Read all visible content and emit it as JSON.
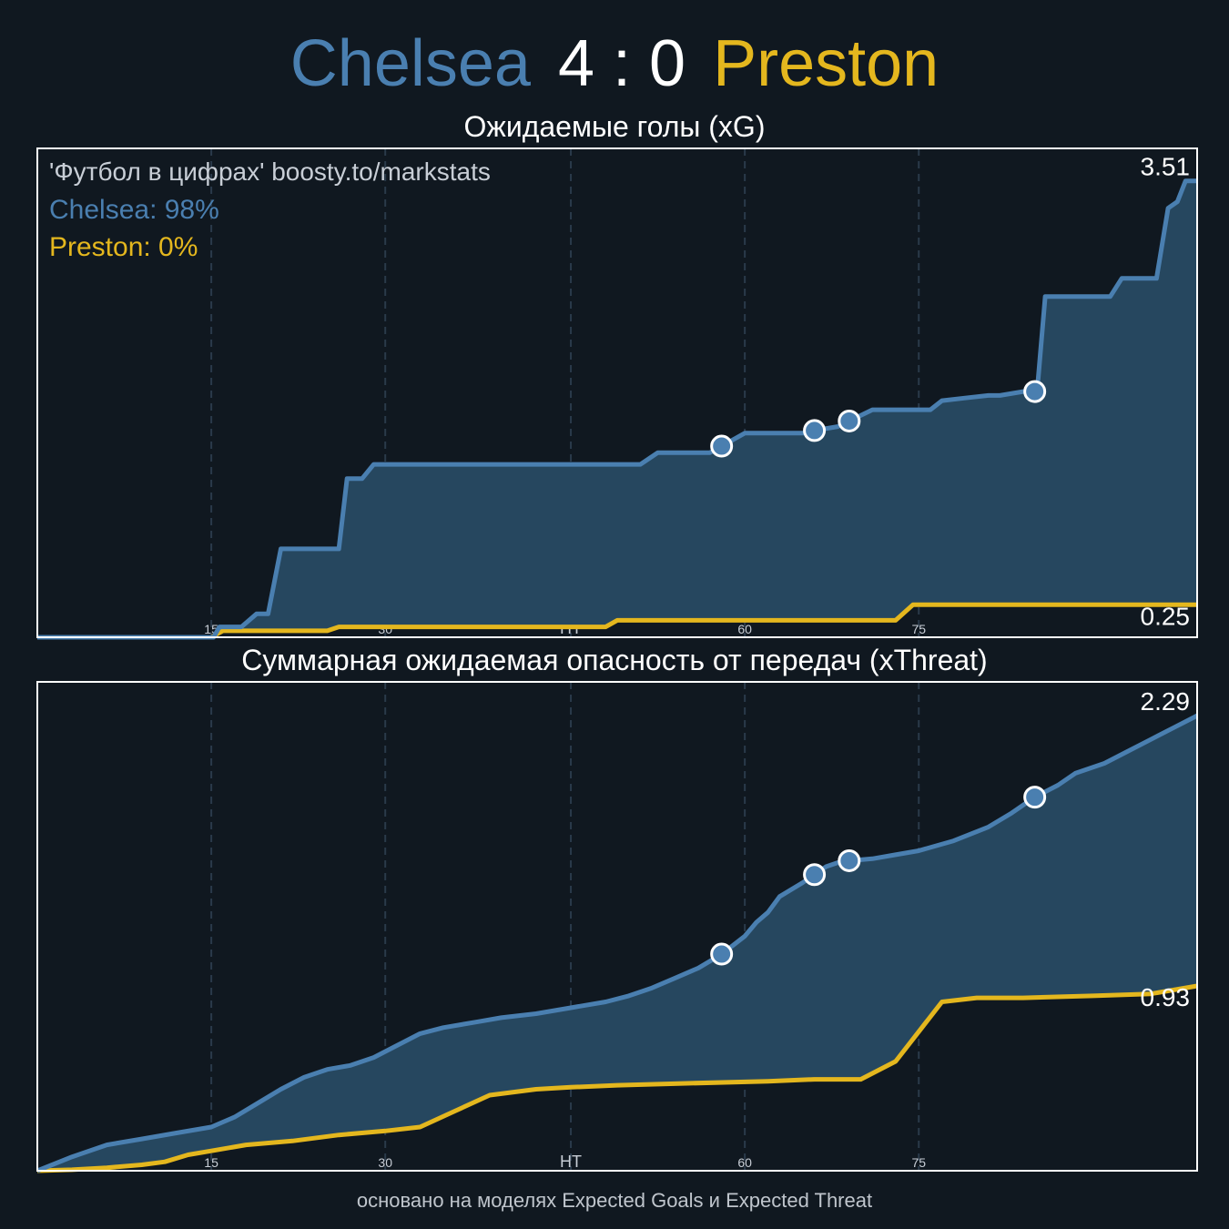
{
  "header": {
    "home_team": "Chelsea",
    "score": "4 : 0",
    "away_team": "Preston"
  },
  "footer": "основано на моделях Expected Goals и Expected Threat",
  "colors": {
    "background": "#101820",
    "home": "#4a7fb0",
    "away": "#e4b71e",
    "fill": "#26475f",
    "grid": "#2a3a4a",
    "frame": "#ffffff"
  },
  "chart_data": [
    {
      "type": "line",
      "title": "Ожидаемые голы (xG)",
      "xlim": [
        0,
        100
      ],
      "ylim": [
        0,
        3.76
      ],
      "x_ticks": [
        {
          "x": 15,
          "label": "15"
        },
        {
          "x": 30,
          "label": "30"
        },
        {
          "x": 46,
          "label": "HT"
        },
        {
          "x": 61,
          "label": "60"
        },
        {
          "x": 76,
          "label": "75"
        }
      ],
      "annotation": {
        "source": "'Футбол в цифрах' boosty.to/markstats",
        "home_prob": "Chelsea: 98%",
        "away_prob": "Preston: 0%"
      },
      "final_labels": {
        "home": "3.51",
        "away": "0.25"
      },
      "series": [
        {
          "name": "Chelsea",
          "team": "home",
          "points": [
            [
              0,
              0
            ],
            [
              15.2,
              0
            ],
            [
              15.7,
              0.08
            ],
            [
              17.6,
              0.08
            ],
            [
              18.9,
              0.18
            ],
            [
              19.9,
              0.18
            ],
            [
              21,
              0.68
            ],
            [
              26,
              0.68
            ],
            [
              26.7,
              1.22
            ],
            [
              28,
              1.22
            ],
            [
              29,
              1.33
            ],
            [
              52,
              1.33
            ],
            [
              53.5,
              1.42
            ],
            [
              57,
              1.42
            ],
            [
              58,
              1.42
            ],
            [
              61,
              1.57
            ],
            [
              66,
              1.57
            ],
            [
              67,
              1.59
            ],
            [
              69,
              1.62
            ],
            [
              72,
              1.75
            ],
            [
              77,
              1.75
            ],
            [
              78,
              1.82
            ],
            [
              80,
              1.84
            ],
            [
              82,
              1.86
            ],
            [
              83,
              1.86
            ],
            [
              85,
              1.89
            ],
            [
              86,
              1.89
            ],
            [
              86.2,
              1.89
            ],
            [
              86.9,
              2.62
            ],
            [
              92.5,
              2.62
            ],
            [
              93.5,
              2.76
            ],
            [
              96.5,
              2.76
            ],
            [
              97.5,
              3.3
            ],
            [
              98.3,
              3.35
            ],
            [
              99,
              3.51
            ],
            [
              100,
              3.51
            ]
          ],
          "goals": [
            59,
            67,
            70,
            86
          ]
        },
        {
          "name": "Preston",
          "team": "away",
          "points": [
            [
              0,
              0
            ],
            [
              15,
              0
            ],
            [
              16,
              0.05
            ],
            [
              25,
              0.05
            ],
            [
              26,
              0.08
            ],
            [
              49,
              0.08
            ],
            [
              50,
              0.13
            ],
            [
              74,
              0.13
            ],
            [
              75.5,
              0.25
            ],
            [
              100,
              0.25
            ]
          ]
        }
      ]
    },
    {
      "type": "line",
      "title": "Суммарная ожидаемая опасность от передач (xThreat)",
      "xlim": [
        0,
        100
      ],
      "ylim": [
        0,
        2.46
      ],
      "x_ticks": [
        {
          "x": 15,
          "label": "15"
        },
        {
          "x": 30,
          "label": "30"
        },
        {
          "x": 46,
          "label": "HT"
        },
        {
          "x": 61,
          "label": "60"
        },
        {
          "x": 76,
          "label": "75"
        }
      ],
      "final_labels": {
        "home": "2.29",
        "away": "0.93"
      },
      "series": [
        {
          "name": "Chelsea",
          "team": "home",
          "points": [
            [
              0,
              0
            ],
            [
              3,
              0.07
            ],
            [
              6,
              0.13
            ],
            [
              9,
              0.16
            ],
            [
              12,
              0.19
            ],
            [
              15,
              0.22
            ],
            [
              17,
              0.27
            ],
            [
              19,
              0.34
            ],
            [
              21,
              0.41
            ],
            [
              23,
              0.47
            ],
            [
              25,
              0.51
            ],
            [
              27,
              0.53
            ],
            [
              29,
              0.57
            ],
            [
              31,
              0.63
            ],
            [
              33,
              0.69
            ],
            [
              35,
              0.72
            ],
            [
              38,
              0.75
            ],
            [
              40,
              0.77
            ],
            [
              43,
              0.79
            ],
            [
              46,
              0.82
            ],
            [
              49,
              0.85
            ],
            [
              51,
              0.88
            ],
            [
              53,
              0.92
            ],
            [
              55,
              0.97
            ],
            [
              57,
              1.02
            ],
            [
              59,
              1.09
            ],
            [
              61,
              1.18
            ],
            [
              62,
              1.25
            ],
            [
              63,
              1.3
            ],
            [
              64,
              1.38
            ],
            [
              66,
              1.45
            ],
            [
              67,
              1.49
            ],
            [
              68,
              1.53
            ],
            [
              69,
              1.55
            ],
            [
              70,
              1.56
            ],
            [
              72,
              1.57
            ],
            [
              74,
              1.59
            ],
            [
              76,
              1.61
            ],
            [
              79,
              1.66
            ],
            [
              82,
              1.73
            ],
            [
              84,
              1.8
            ],
            [
              86,
              1.88
            ],
            [
              88,
              1.94
            ],
            [
              89.5,
              2.0
            ],
            [
              92,
              2.05
            ],
            [
              94,
              2.11
            ],
            [
              96,
              2.17
            ],
            [
              98,
              2.23
            ],
            [
              100,
              2.29
            ]
          ],
          "goals": [
            59,
            67,
            70,
            86
          ]
        },
        {
          "name": "Preston",
          "team": "away",
          "points": [
            [
              0,
              0
            ],
            [
              3,
              0.005
            ],
            [
              6,
              0.015
            ],
            [
              9,
              0.03
            ],
            [
              11,
              0.045
            ],
            [
              13,
              0.08
            ],
            [
              15,
              0.1
            ],
            [
              18,
              0.13
            ],
            [
              22,
              0.15
            ],
            [
              26,
              0.18
            ],
            [
              30,
              0.2
            ],
            [
              33,
              0.22
            ],
            [
              36,
              0.3
            ],
            [
              39,
              0.38
            ],
            [
              43,
              0.41
            ],
            [
              46,
              0.42
            ],
            [
              50,
              0.43
            ],
            [
              56,
              0.44
            ],
            [
              63,
              0.45
            ],
            [
              67,
              0.46
            ],
            [
              71,
              0.46
            ],
            [
              74,
              0.55
            ],
            [
              78,
              0.85
            ],
            [
              81,
              0.87
            ],
            [
              85,
              0.87
            ],
            [
              91,
              0.88
            ],
            [
              96,
              0.89
            ],
            [
              100,
              0.93
            ]
          ]
        }
      ]
    }
  ]
}
